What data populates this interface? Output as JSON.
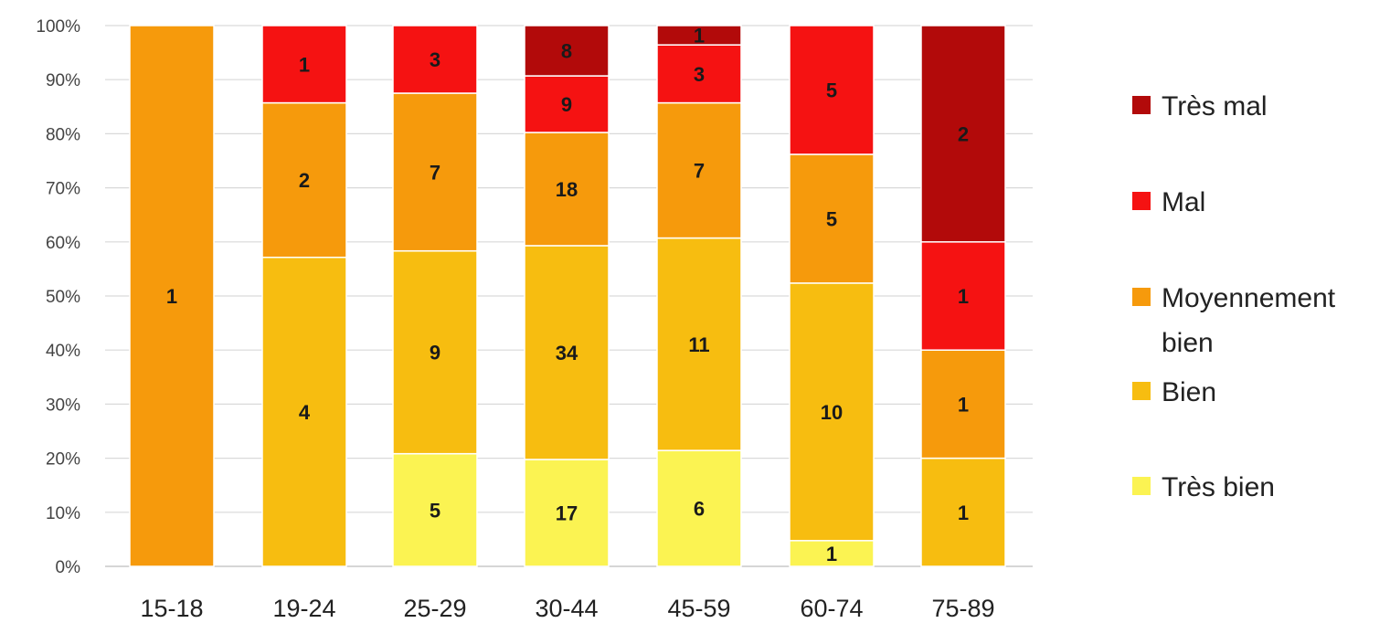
{
  "chart_data": {
    "type": "bar",
    "stacked": true,
    "normalized": true,
    "categories": [
      "15-18",
      "19-24",
      "25-29",
      "30-44",
      "45-59",
      "60-74",
      "75-89"
    ],
    "series": [
      {
        "name": "Très bien",
        "color": "#fbf352",
        "values": [
          0,
          0,
          5,
          17,
          6,
          1,
          0
        ]
      },
      {
        "name": "Bien",
        "color": "#f7bd10",
        "values": [
          0,
          4,
          9,
          34,
          11,
          10,
          1
        ]
      },
      {
        "name": "Moyennement bien",
        "color": "#f69a0c",
        "values": [
          1,
          2,
          7,
          18,
          7,
          5,
          1
        ]
      },
      {
        "name": "Mal",
        "color": "#f51212",
        "values": [
          0,
          1,
          3,
          9,
          3,
          5,
          1
        ]
      },
      {
        "name": "Très mal",
        "color": "#b20a0a",
        "values": [
          0,
          0,
          0,
          8,
          1,
          0,
          2
        ]
      }
    ],
    "legend_order": [
      "Très mal",
      "Mal",
      "Moyennement bien",
      "Bien",
      "Très bien"
    ],
    "legend_lines": {
      "Très mal": [
        "Très mal"
      ],
      "Mal": [
        "Mal"
      ],
      "Moyennement bien": [
        "Moyennement",
        "bien"
      ],
      "Bien": [
        "Bien"
      ],
      "Très bien": [
        "Très bien"
      ]
    },
    "y_ticks": [
      "0%",
      "10%",
      "20%",
      "30%",
      "40%",
      "50%",
      "60%",
      "70%",
      "80%",
      "90%",
      "100%"
    ],
    "ylim": [
      0,
      100
    ],
    "grid": true,
    "legend_position": "right",
    "title": "",
    "xlabel": "",
    "ylabel": ""
  }
}
